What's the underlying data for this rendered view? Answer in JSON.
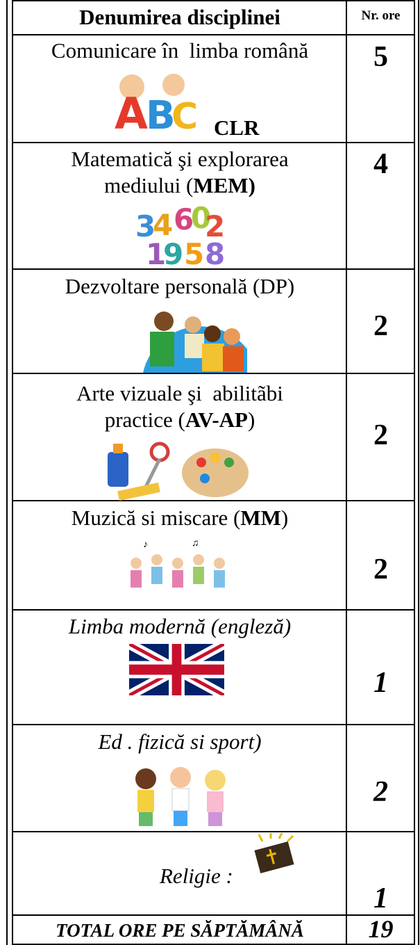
{
  "table": {
    "header": [
      "Denumirea disciplinei",
      "Nr. ore"
    ],
    "rows": [
      {
        "lines": [
          [
            "Comunicare în  limba română"
          ]
        ],
        "abbr": "CLR",
        "hours": 5
      },
      {
        "lines": [
          [
            "Matematică şi explorarea"
          ],
          [
            "mediului (",
            "MEM)"
          ]
        ],
        "hours": 4
      },
      {
        "lines": [
          [
            "Dezvoltare personală (DP)"
          ]
        ],
        "hours": 2
      },
      {
        "lines": [
          [
            "Arte vizuale şi  abilitãbi"
          ],
          [
            "practice (",
            "AV-AP",
            ")"
          ]
        ],
        "hours": 2
      },
      {
        "lines": [
          [
            "Muzică si miscare (",
            "MM",
            ")"
          ]
        ],
        "hours": 2
      },
      {
        "lines": [
          [
            "Limba modernă (engleză)"
          ]
        ],
        "hours": 1
      },
      {
        "lines": [
          [
            "Ed . fizică si sport)"
          ]
        ],
        "hours": 2
      },
      {
        "lines": [
          [
            "Religie :"
          ]
        ],
        "hours": 1
      }
    ],
    "total": {
      "label": "TOTAL ORE PE SĂPTĂMÂNĂ",
      "hours": 19
    }
  }
}
